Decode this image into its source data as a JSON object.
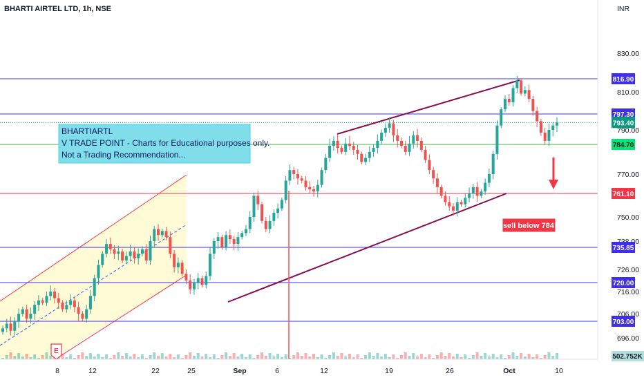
{
  "header": {
    "symbol_title": "BHARTI AIRTEL LTD, 1h, NSE",
    "currency": "INR"
  },
  "note": {
    "line1": "BHARTIARTL",
    "line2": "V TRADE POINT - Charts for Educational purposes only.",
    "line3": "Not a Trading Recommendation..."
  },
  "sell_label": "sell below 784",
  "colors": {
    "up_candle": "#26a69a",
    "down_candle": "#ef5350",
    "blue_level": "#3f2fe8",
    "red_level": "#f23645",
    "green_level": "#4caf50",
    "channel": "#880e4f",
    "note_bg": "#80deea",
    "price_tag": "#089981"
  },
  "chart_data": {
    "type": "candlestick",
    "title": "BHARTI AIRTEL LTD, 1h, NSE",
    "y_axis": {
      "unit": "INR",
      "range": [
        690,
        838
      ],
      "ticks": [
        "830.00",
        "810.00",
        "790.00",
        "770.00",
        "750.00",
        "738.00",
        "726.00",
        "716.00",
        "706.00",
        "696.00"
      ]
    },
    "x_axis": {
      "ticks": [
        "8",
        "12",
        "22",
        "25",
        "Sep",
        "6",
        "12",
        "19",
        "26",
        "Oct",
        "10"
      ]
    },
    "levels": [
      {
        "price": 816.9,
        "label": "816.90",
        "color": "blue"
      },
      {
        "price": 797.3,
        "label": "797.30",
        "color": "blue"
      },
      {
        "price": 784.7,
        "label": "784.70",
        "color": "green"
      },
      {
        "price": 761.1,
        "label": "761.10",
        "color": "red"
      },
      {
        "price": 735.85,
        "label": "735.85",
        "color": "blue"
      },
      {
        "price": 720.0,
        "label": "720.00",
        "color": "blue"
      },
      {
        "price": 703.0,
        "label": "703.00",
        "color": "blue"
      }
    ],
    "last_price": {
      "value": 793.4,
      "label": "793.40"
    },
    "volume_label": "502.752K",
    "annotations": [
      "sell below 784"
    ],
    "close_series": [
      700,
      702,
      699,
      703,
      706,
      708,
      704,
      706,
      710,
      712,
      711,
      714,
      716,
      713,
      711,
      708,
      710,
      712,
      709,
      706,
      704,
      708,
      714,
      722,
      728,
      733,
      737,
      735,
      733,
      734,
      730,
      732,
      734,
      731,
      733,
      735,
      730,
      738,
      744,
      741,
      743,
      740,
      733,
      727,
      729,
      724,
      721,
      717,
      720,
      722,
      719,
      723,
      733,
      738,
      740,
      736,
      741,
      739,
      737,
      740,
      742,
      744,
      750,
      760,
      756,
      748,
      744,
      748,
      752,
      754,
      758,
      767,
      772,
      770,
      768,
      767,
      764,
      763,
      762,
      765,
      772,
      778,
      784,
      786,
      783,
      781,
      785,
      784,
      782,
      780,
      776,
      778,
      781,
      783,
      786,
      789,
      791,
      793,
      788,
      786,
      784,
      781,
      785,
      788,
      786,
      782,
      777,
      772,
      768,
      764,
      760,
      757,
      755,
      753,
      757,
      756,
      759,
      761,
      764,
      760,
      762,
      766,
      770,
      780,
      792,
      800,
      806,
      804,
      812,
      816,
      809,
      811,
      806,
      799,
      794,
      789,
      786,
      790,
      792,
      793.4
    ]
  }
}
